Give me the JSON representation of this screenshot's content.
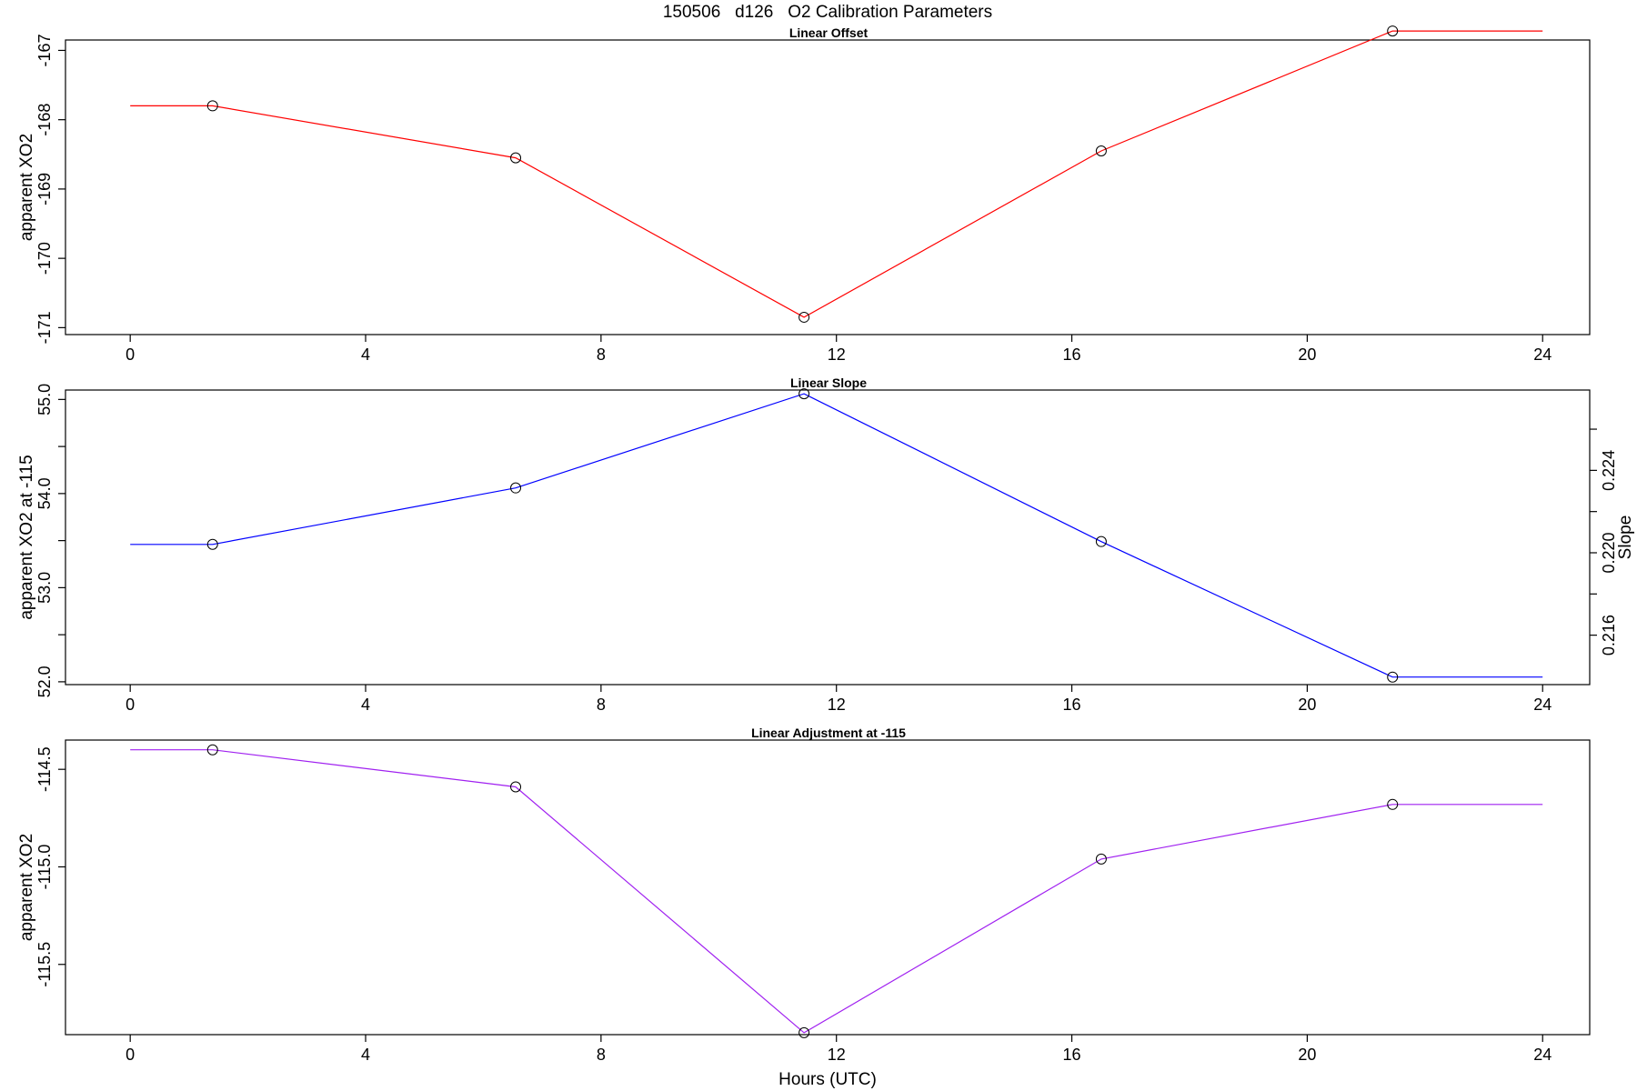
{
  "figure": {
    "title": "150506   d126   O2 Calibration Parameters",
    "xlabel": "Hours (UTC)"
  },
  "chart_data": [
    {
      "type": "line",
      "title": "Linear Offset",
      "xlabel": "",
      "ylabel": "apparent XO2",
      "xlim": [
        -1.1,
        24.8
      ],
      "ylim": [
        -171.1,
        -166.85
      ],
      "x_ticks": [
        0,
        4,
        8,
        12,
        16,
        20,
        24
      ],
      "y_ticks": [
        -171,
        -170,
        -169,
        -168,
        -167
      ],
      "y_tick_labels": [
        "-171",
        "-170",
        "-169",
        "-168",
        "-167"
      ],
      "grid": false,
      "series": [
        {
          "color": "#ff0000",
          "x": [
            0,
            1.4,
            6.55,
            11.45,
            16.5,
            21.45,
            24
          ],
          "y": [
            -167.8,
            -167.8,
            -168.55,
            -170.85,
            -168.45,
            -166.72,
            -166.72
          ],
          "markers": [
            1,
            2,
            3,
            4,
            5
          ]
        }
      ]
    },
    {
      "type": "line",
      "title": "Linear Slope",
      "xlabel": "",
      "ylabel": "apparent XO2 at -115",
      "ylabel_right": "Slope",
      "xlim": [
        -1.1,
        24.8
      ],
      "ylim": [
        51.97,
        55.1
      ],
      "x_ticks": [
        0,
        4,
        8,
        12,
        16,
        20,
        24
      ],
      "y_ticks": [
        52,
        52.5,
        53,
        53.5,
        54,
        54.5,
        55
      ],
      "y_tick_labels": [
        "52.0",
        "",
        "53.0",
        "",
        "54.0",
        "",
        "55.0"
      ],
      "y_right_ticks": [
        0.216,
        0.218,
        0.22,
        0.222,
        0.224,
        0.226
      ],
      "y_right_tick_labels": [
        "0.216",
        "",
        "0.220",
        "",
        "0.224",
        ""
      ],
      "y_right_lim": [
        0.2136,
        0.2279
      ],
      "grid": false,
      "series": [
        {
          "color": "#0000ff",
          "x": [
            0,
            1.4,
            6.55,
            11.45,
            16.5,
            21.45,
            24
          ],
          "y": [
            53.46,
            53.46,
            54.06,
            55.06,
            53.49,
            52.05,
            52.05
          ],
          "markers": [
            1,
            2,
            3,
            4,
            5
          ]
        }
      ]
    },
    {
      "type": "line",
      "title": "Linear Adjustment at -115",
      "xlabel": "Hours (UTC)",
      "ylabel": "apparent XO2",
      "xlim": [
        -1.1,
        24.8
      ],
      "ylim": [
        -115.86,
        -114.35
      ],
      "x_ticks": [
        0,
        4,
        8,
        12,
        16,
        20,
        24
      ],
      "y_ticks": [
        -115.5,
        -115,
        -114.5
      ],
      "y_tick_labels": [
        "-115.5",
        "-115.0",
        "-114.5"
      ],
      "grid": false,
      "series": [
        {
          "color": "#a020f0",
          "x": [
            0,
            1.4,
            6.55,
            11.45,
            16.5,
            21.45,
            24
          ],
          "y": [
            -114.4,
            -114.4,
            -114.59,
            -115.85,
            -114.96,
            -114.68,
            -114.68
          ],
          "markers": [
            1,
            2,
            3,
            4,
            5
          ]
        }
      ]
    }
  ]
}
